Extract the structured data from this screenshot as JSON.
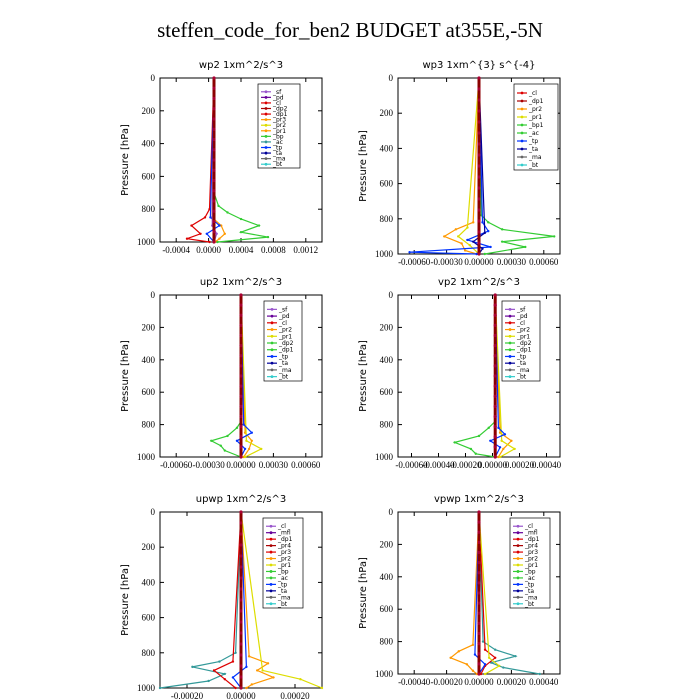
{
  "title": "steffen_code_for_ben2  BUDGET at355E,-5N",
  "colors": {
    "purple": "#9955cc",
    "darkpurple": "#660099",
    "red": "#dd0000",
    "darkred": "#aa0000",
    "orange": "#ff9900",
    "yellow": "#dddd00",
    "green": "#33cc33",
    "teal": "#339999",
    "blue": "#0033ff",
    "navy": "#000099",
    "gray": "#666666",
    "cyan": "#33cccc"
  },
  "chart_data": [
    {
      "type": "line",
      "title": "wp2  1xm^2/s^3",
      "ylabel": "Pressure [hPa]",
      "yticks": [
        "0",
        "200",
        "400",
        "600",
        "800",
        "1000"
      ],
      "xticks": [
        "-0.0004",
        "0.0000",
        "0.0004",
        "0.0008",
        "0.0012"
      ],
      "xlim": [
        -0.0006,
        0.0012
      ],
      "ylim": [
        1000,
        0
      ],
      "legend": [
        "_sf",
        "_pd",
        "_cl",
        "_dp2",
        "_dp1",
        "_pr3",
        "_pr2",
        "_pr1",
        "_bp",
        "_ac",
        "_tp",
        "_ta",
        "_ma",
        "_bt"
      ],
      "legend_colors": [
        "purple",
        "darkpurple",
        "red",
        "darkred",
        "red",
        "orange",
        "yellow",
        "orange",
        "green",
        "teal",
        "blue",
        "navy",
        "gray",
        "cyan"
      ],
      "series": [
        {
          "color": "green",
          "p": [
            0,
            700,
            780,
            820,
            860,
            900,
            940,
            970,
            1000
          ],
          "v": [
            0,
            0,
            5e-05,
            0.00015,
            0.0003,
            0.0005,
            0.0003,
            0.0006,
            4e-05
          ]
        },
        {
          "color": "orange",
          "p": [
            0,
            850,
            900,
            950,
            980,
            1000
          ],
          "v": [
            0,
            -2e-05,
            8e-05,
            0.00012,
            6e-05,
            1e-05
          ]
        },
        {
          "color": "red",
          "p": [
            0,
            800,
            850,
            900,
            950,
            980,
            1000
          ],
          "v": [
            0,
            -5e-05,
            -0.0001,
            -0.00025,
            -0.00015,
            -0.0003,
            -5e-05
          ]
        },
        {
          "color": "blue",
          "p": [
            0,
            850,
            900,
            950,
            1000
          ],
          "v": [
            0,
            -4e-05,
            6e-05,
            -8e-05,
            0
          ]
        },
        {
          "color": "purple",
          "p": [
            0,
            900,
            950,
            1000
          ],
          "v": [
            0,
            -2e-05,
            3e-05,
            0
          ]
        },
        {
          "color": "darkpurple",
          "p": [
            0,
            1000
          ],
          "v": [
            0,
            0
          ]
        }
      ]
    },
    {
      "type": "line",
      "title": "wp3  1xm^{3} s^{-4}",
      "ylabel": "Pressure [hPa]",
      "yticks": [
        "0",
        "200",
        "400",
        "600",
        "800",
        "1000"
      ],
      "xticks": [
        "-0.00060",
        "-0.00030",
        "0.00000",
        "0.00030",
        "0.00060"
      ],
      "xlim": [
        -0.0007,
        0.0007
      ],
      "ylim": [
        1000,
        0
      ],
      "legend": [
        "_cl",
        "_dp1",
        "_pr2",
        "_pr1",
        "_bp1",
        "_ac",
        "_tp",
        "_ta",
        "_ma",
        "_bt"
      ],
      "legend_colors": [
        "red",
        "darkred",
        "orange",
        "yellow",
        "green",
        "green",
        "blue",
        "navy",
        "gray",
        "cyan"
      ],
      "series": [
        {
          "color": "green",
          "p": [
            0,
            780,
            820,
            860,
            900,
            930,
            960,
            1000
          ],
          "v": [
            0,
            2e-05,
            8e-05,
            0.0002,
            0.00065,
            0.0002,
            0.0004,
            5e-05
          ]
        },
        {
          "color": "orange",
          "p": [
            0,
            820,
            860,
            900,
            940,
            980,
            1000
          ],
          "v": [
            0,
            -5e-05,
            -0.0002,
            -0.0003,
            -0.00015,
            -0.00012,
            -2e-05
          ]
        },
        {
          "color": "yellow",
          "p": [
            0,
            850,
            900,
            950,
            1000
          ],
          "v": [
            0,
            -0.0001,
            -0.00018,
            -8e-05,
            0
          ]
        },
        {
          "color": "blue",
          "p": [
            0,
            820,
            870,
            920,
            960,
            990,
            1000
          ],
          "v": [
            0,
            3e-05,
            8e-05,
            -0.0001,
            0.0001,
            -0.0006,
            -2e-05
          ]
        },
        {
          "color": "navy",
          "p": [
            0,
            880,
            930,
            970,
            1000
          ],
          "v": [
            0,
            5e-05,
            -5e-05,
            3e-05,
            0
          ]
        },
        {
          "color": "red",
          "p": [
            0,
            1000
          ],
          "v": [
            0,
            0
          ]
        }
      ]
    },
    {
      "type": "line",
      "title": "up2  1xm^2/s^3",
      "ylabel": "Pressure [hPa]",
      "yticks": [
        "0",
        "200",
        "400",
        "600",
        "800",
        "1000"
      ],
      "xticks": [
        "-0.00060",
        "-0.00030",
        "0.00000",
        "0.00030",
        "0.00060"
      ],
      "xlim": [
        -0.0006,
        0.0006
      ],
      "ylim": [
        1000,
        0
      ],
      "legend": [
        "_sf",
        "_pd",
        "_cl",
        "_pr2",
        "_pr1",
        "_dp2",
        "_dp1",
        "_tp",
        "_ta",
        "_ma",
        "_bt"
      ],
      "legend_colors": [
        "purple",
        "darkpurple",
        "red",
        "orange",
        "yellow",
        "green",
        "green",
        "blue",
        "navy",
        "gray",
        "cyan"
      ],
      "series": [
        {
          "color": "green",
          "p": [
            0,
            780,
            820,
            870,
            900,
            930,
            960,
            1000
          ],
          "v": [
            0,
            0,
            -3e-05,
            -0.0001,
            -0.00022,
            -0.00015,
            -0.00012,
            0
          ]
        },
        {
          "color": "orange",
          "p": [
            0,
            850,
            900,
            950,
            1000
          ],
          "v": [
            0,
            3e-05,
            8e-05,
            6e-05,
            2e-05
          ]
        },
        {
          "color": "yellow",
          "p": [
            0,
            900,
            950,
            1000
          ],
          "v": [
            0,
            4e-05,
            0.00015,
            3e-05
          ]
        },
        {
          "color": "blue",
          "p": [
            0,
            800,
            850,
            900,
            950,
            1000
          ],
          "v": [
            0,
            2e-05,
            8e-05,
            -3e-05,
            3e-05,
            0
          ]
        },
        {
          "color": "red",
          "p": [
            0,
            1000
          ],
          "v": [
            0,
            0
          ]
        }
      ]
    },
    {
      "type": "line",
      "title": "vp2  1xm^2/s^3",
      "ylabel": "Pressure [hPa]",
      "yticks": [
        "0",
        "200",
        "400",
        "600",
        "800",
        "1000"
      ],
      "xticks": [
        "-0.00060",
        "-0.00040",
        "-0.00020",
        "0.00000",
        "0.00020",
        "0.00040"
      ],
      "xlim": [
        -0.0006,
        0.0004
      ],
      "ylim": [
        1000,
        0
      ],
      "legend": [
        "_sf",
        "_pd",
        "_cl",
        "_pr2",
        "_pr1",
        "_dp2",
        "_dp1",
        "_tp",
        "_ta",
        "_ma",
        "_bt"
      ],
      "legend_colors": [
        "purple",
        "darkpurple",
        "red",
        "orange",
        "yellow",
        "green",
        "green",
        "blue",
        "navy",
        "gray",
        "cyan"
      ],
      "series": [
        {
          "color": "green",
          "p": [
            0,
            780,
            820,
            870,
            910,
            950,
            980,
            1000
          ],
          "v": [
            0,
            0,
            -4e-05,
            -0.0001,
            -0.00025,
            -0.00015,
            -0.00012,
            0
          ]
        },
        {
          "color": "orange",
          "p": [
            0,
            850,
            900,
            950,
            1000
          ],
          "v": [
            0,
            3e-05,
            0.0001,
            5e-05,
            2e-05
          ]
        },
        {
          "color": "yellow",
          "p": [
            0,
            900,
            950,
            1000
          ],
          "v": [
            0,
            4e-05,
            0.00012,
            3e-05
          ]
        },
        {
          "color": "blue",
          "p": [
            0,
            820,
            860,
            900,
            940,
            1000
          ],
          "v": [
            0,
            2e-05,
            6e-05,
            -3e-05,
            3e-05,
            0
          ]
        },
        {
          "color": "red",
          "p": [
            0,
            1000
          ],
          "v": [
            0,
            0
          ]
        }
      ]
    },
    {
      "type": "line",
      "title": "upwp  1xm^2/s^3",
      "ylabel": "Pressure [hPa]",
      "yticks": [
        "0",
        "200",
        "400",
        "600",
        "800",
        "1000"
      ],
      "xticks": [
        "-0.00020",
        "0.00000",
        "0.00020"
      ],
      "xlim": [
        -0.0003,
        0.0003
      ],
      "ylim": [
        1000,
        0
      ],
      "legend": [
        "_cl",
        "_mfl",
        "_dp1",
        "_pr4",
        "_pr3",
        "_pr2",
        "_pr1",
        "_bp",
        "_ac",
        "_tp",
        "_ta",
        "_ma",
        "_bt"
      ],
      "legend_colors": [
        "purple",
        "darkpurple",
        "red",
        "darkred",
        "red",
        "orange",
        "yellow",
        "green",
        "green",
        "blue",
        "navy",
        "gray",
        "cyan"
      ],
      "series": [
        {
          "color": "teal",
          "p": [
            0,
            800,
            850,
            880,
            920,
            960,
            1000
          ],
          "v": [
            0,
            -2e-05,
            -8e-05,
            -0.00018,
            -6e-05,
            -0.00012,
            -0.0003
          ]
        },
        {
          "color": "orange",
          "p": [
            0,
            820,
            860,
            900,
            940,
            980,
            1000
          ],
          "v": [
            0,
            3e-05,
            0.0001,
            6e-05,
            0.00012,
            4e-05,
            2e-05
          ]
        },
        {
          "color": "red",
          "p": [
            0,
            850,
            900,
            950,
            1000
          ],
          "v": [
            0,
            -3e-05,
            -0.0001,
            -6e-05,
            -2e-05
          ]
        },
        {
          "color": "yellow",
          "p": [
            0,
            900,
            950,
            1000
          ],
          "v": [
            0,
            8e-05,
            0.00022,
            0.0003
          ]
        },
        {
          "color": "blue",
          "p": [
            0,
            880,
            940,
            1000
          ],
          "v": [
            0,
            2e-05,
            -3e-05,
            0
          ]
        },
        {
          "color": "darkpurple",
          "p": [
            0,
            1000
          ],
          "v": [
            0,
            0
          ]
        }
      ]
    },
    {
      "type": "line",
      "title": "vpwp  1xm^2/s^3",
      "ylabel": "Pressure [hPa]",
      "yticks": [
        "0",
        "200",
        "400",
        "600",
        "800",
        "1000"
      ],
      "xticks": [
        "-0.00040",
        "-0.00020",
        "0.00000",
        "0.00020",
        "0.00040"
      ],
      "xlim": [
        -0.0004,
        0.0004
      ],
      "ylim": [
        1000,
        0
      ],
      "legend": [
        "_cl",
        "_mfl",
        "_dp1",
        "_pr4",
        "_pr3",
        "_pr2",
        "_pr1",
        "_bp",
        "_ac",
        "_tp",
        "_ta",
        "_ma",
        "_bt"
      ],
      "legend_colors": [
        "purple",
        "darkpurple",
        "red",
        "darkred",
        "red",
        "orange",
        "yellow",
        "green",
        "green",
        "blue",
        "navy",
        "gray",
        "cyan"
      ],
      "series": [
        {
          "color": "teal",
          "p": [
            0,
            800,
            850,
            890,
            930,
            960,
            1000
          ],
          "v": [
            0,
            2e-05,
            8e-05,
            0.00018,
            6e-05,
            0.00012,
            0.0003
          ]
        },
        {
          "color": "orange",
          "p": [
            0,
            820,
            860,
            900,
            940,
            980,
            1000
          ],
          "v": [
            0,
            -3e-05,
            -0.0001,
            -0.00014,
            -6e-05,
            -3e-05,
            -1e-05
          ]
        },
        {
          "color": "red",
          "p": [
            0,
            850,
            900,
            950,
            1000
          ],
          "v": [
            0,
            3e-05,
            8e-05,
            3e-05,
            1e-05
          ]
        },
        {
          "color": "yellow",
          "p": [
            0,
            900,
            950,
            1000
          ],
          "v": [
            0,
            5e-05,
            0.0001,
            3e-05
          ]
        },
        {
          "color": "blue",
          "p": [
            0,
            880,
            940,
            1000
          ],
          "v": [
            0,
            -2e-05,
            3e-05,
            0
          ]
        },
        {
          "color": "darkpurple",
          "p": [
            0,
            1000
          ],
          "v": [
            0,
            0
          ]
        }
      ]
    }
  ]
}
